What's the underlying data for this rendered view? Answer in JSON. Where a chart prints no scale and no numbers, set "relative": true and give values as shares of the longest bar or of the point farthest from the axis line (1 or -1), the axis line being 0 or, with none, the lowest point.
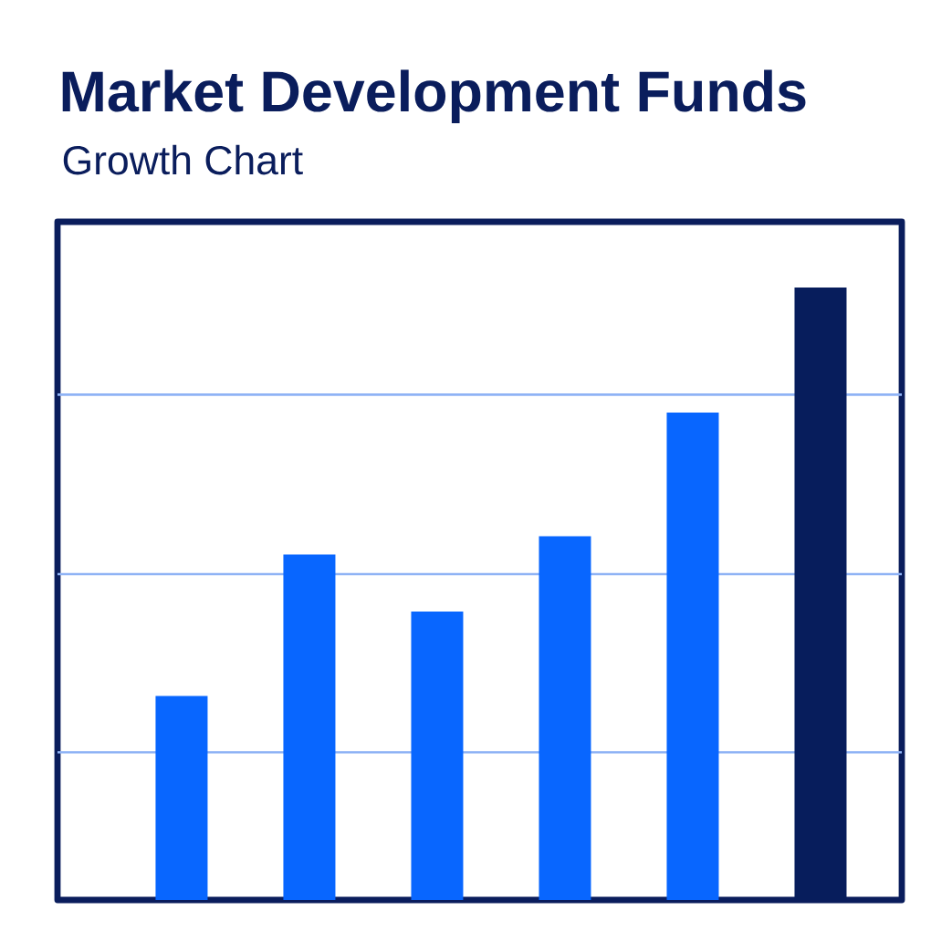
{
  "chart_data": {
    "type": "bar",
    "title": "Market Development Funds",
    "subtitle": "Growth Chart",
    "categories": [
      null,
      null,
      null,
      null,
      null,
      null
    ],
    "values": [
      0.333,
      0.564,
      0.471,
      0.594,
      0.796,
      1
    ],
    "colors": [
      "#0866ff",
      "#0866ff",
      "#0866ff",
      "#0866ff",
      "#0866ff",
      "#071d5c"
    ],
    "relative": true,
    "ref_lines": [
      {
        "axis": "y",
        "value": 0.241,
        "color": "#8fb3f5"
      },
      {
        "axis": "y",
        "value": 0.532,
        "color": "#8fb3f5"
      },
      {
        "axis": "y",
        "value": 0.825,
        "color": "#8fb3f5"
      }
    ]
  }
}
